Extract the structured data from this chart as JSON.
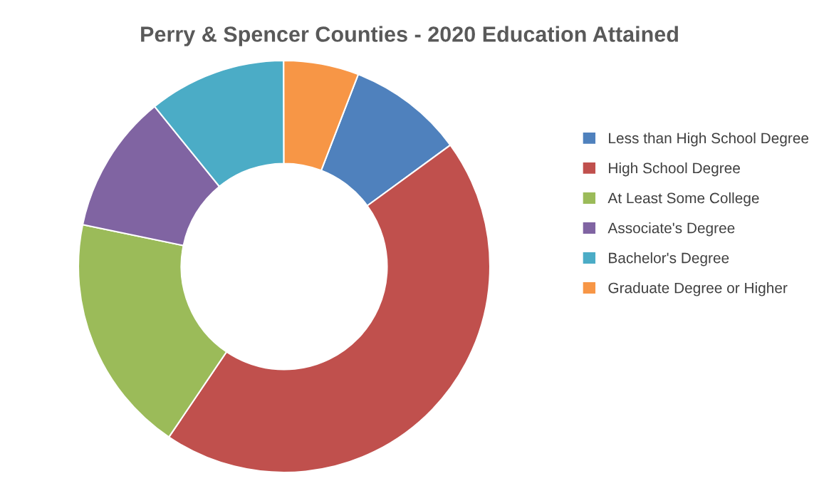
{
  "chart_data": {
    "type": "donut",
    "title": "Perry & Spencer Counties - 2020 Education Attained",
    "categories": [
      "Less than High School Degree",
      "High School Degree",
      "At Least Some College",
      "Associate's Degree",
      "Bachelor's Degree",
      "Graduate Degree or Higher"
    ],
    "values": [
      9.1,
      44.5,
      18.8,
      10.9,
      10.8,
      5.9
    ],
    "colors": [
      "#4f81bd",
      "#c0504d",
      "#9bbb59",
      "#8064a2",
      "#4bacc6",
      "#f79646"
    ],
    "legend": "right"
  }
}
